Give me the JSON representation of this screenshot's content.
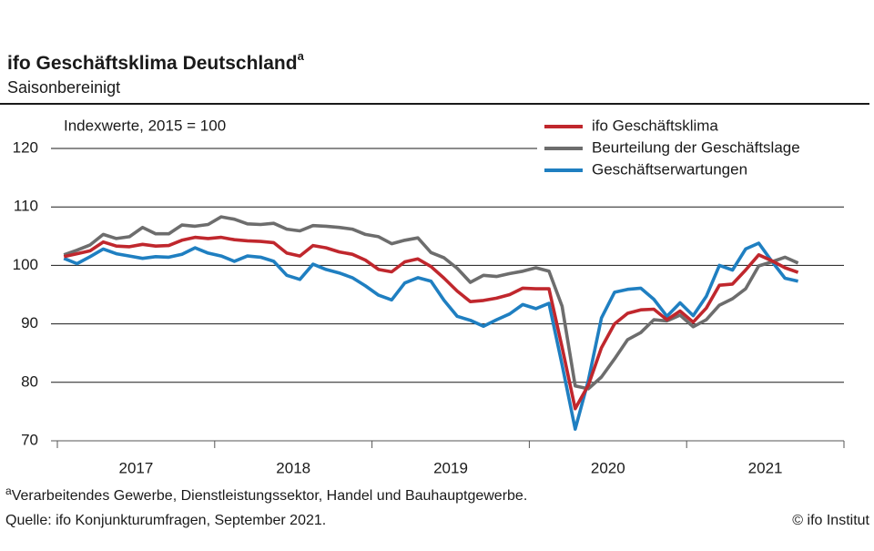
{
  "chart_data": {
    "type": "line",
    "title": "ifo Geschäftsklima Deutschland",
    "title_marker": "a",
    "subtitle": "Saisonbereinigt",
    "annotation": "Indexwerte, 2015 = 100",
    "footnote": {
      "marker": "a",
      "text": "Verarbeitendes  Gewerbe,  Dienstleistungssektor,  Handel und Bauhauptgewerbe."
    },
    "source": "Quelle:  ifo Konjunkturumfragen,  September 2021.",
    "copyright": "© ifo Institut",
    "categories": [
      null,
      null,
      null,
      null,
      null,
      null,
      "2017",
      null,
      null,
      null,
      null,
      null,
      null,
      null,
      null,
      null,
      null,
      null,
      "2018",
      null,
      null,
      null,
      null,
      null,
      null,
      null,
      null,
      null,
      null,
      null,
      "2019",
      null,
      null,
      null,
      null,
      null,
      null,
      null,
      null,
      null,
      null,
      null,
      "2020",
      null,
      null,
      null,
      null,
      null,
      null,
      null,
      null,
      null,
      null,
      null,
      "2021",
      null,
      null
    ],
    "ylim": [
      70,
      120
    ],
    "yticks": [
      70,
      80,
      90,
      100,
      110,
      120
    ],
    "grid": true,
    "legend": "top-right",
    "series": [
      {
        "name": "ifo Geschäftsklima",
        "color": "#c0272d",
        "values": [
          101.5,
          102,
          102.5,
          104,
          103.3,
          103.2,
          103.6,
          103.3,
          103.4,
          104.3,
          104.8,
          104.6,
          104.8,
          104.4,
          104.2,
          104.1,
          103.9,
          102.1,
          101.6,
          103.4,
          103,
          102.3,
          101.9,
          100.9,
          99.3,
          98.9,
          100.6,
          101.1,
          99.8,
          97.8,
          95.6,
          93.8,
          94,
          94.4,
          95,
          96.1,
          96,
          96,
          86,
          75.5,
          79.5,
          85.9,
          90,
          91.8,
          92.4,
          92.5,
          90.7,
          92.2,
          90.3,
          92.7,
          96.6,
          96.8,
          99.2,
          101.8,
          100.8,
          99.6,
          98.8
        ]
      },
      {
        "name": "Beurteilung der Geschäftslage",
        "color": "#6d6d6d",
        "values": [
          101.8,
          102.6,
          103.5,
          105.3,
          104.6,
          104.9,
          106.5,
          105.4,
          105.4,
          106.9,
          106.7,
          107,
          108.3,
          107.9,
          107.1,
          107,
          107.2,
          106.2,
          105.9,
          106.8,
          106.7,
          106.5,
          106.2,
          105.3,
          104.9,
          103.7,
          104.3,
          104.7,
          102.2,
          101.3,
          99.5,
          97.1,
          98.3,
          98.1,
          98.6,
          99,
          99.6,
          99,
          93,
          79.4,
          78.9,
          80.9,
          84,
          87.3,
          88.5,
          90.7,
          90.5,
          91.5,
          89.5,
          90.7,
          93.2,
          94.3,
          96,
          99.9,
          100.6,
          101.4,
          100.4
        ]
      },
      {
        "name": "Geschäftserwartungen",
        "color": "#1f7fc1",
        "values": [
          101.2,
          100.3,
          101.5,
          102.8,
          102,
          101.6,
          101.2,
          101.5,
          101.4,
          101.9,
          103,
          102.1,
          101.6,
          100.7,
          101.6,
          101.4,
          100.7,
          98.3,
          97.6,
          100.2,
          99.3,
          98.7,
          97.9,
          96.5,
          94.9,
          94.1,
          97,
          97.9,
          97.3,
          94,
          91.3,
          90.6,
          89.6,
          90.7,
          91.7,
          93.3,
          92.6,
          93.5,
          83,
          72,
          80.3,
          91,
          95.4,
          95.9,
          96.1,
          94.2,
          91.3,
          93.6,
          91.4,
          94.7,
          100,
          99.2,
          102.8,
          103.8,
          100.7,
          97.8,
          97.3
        ]
      }
    ]
  }
}
